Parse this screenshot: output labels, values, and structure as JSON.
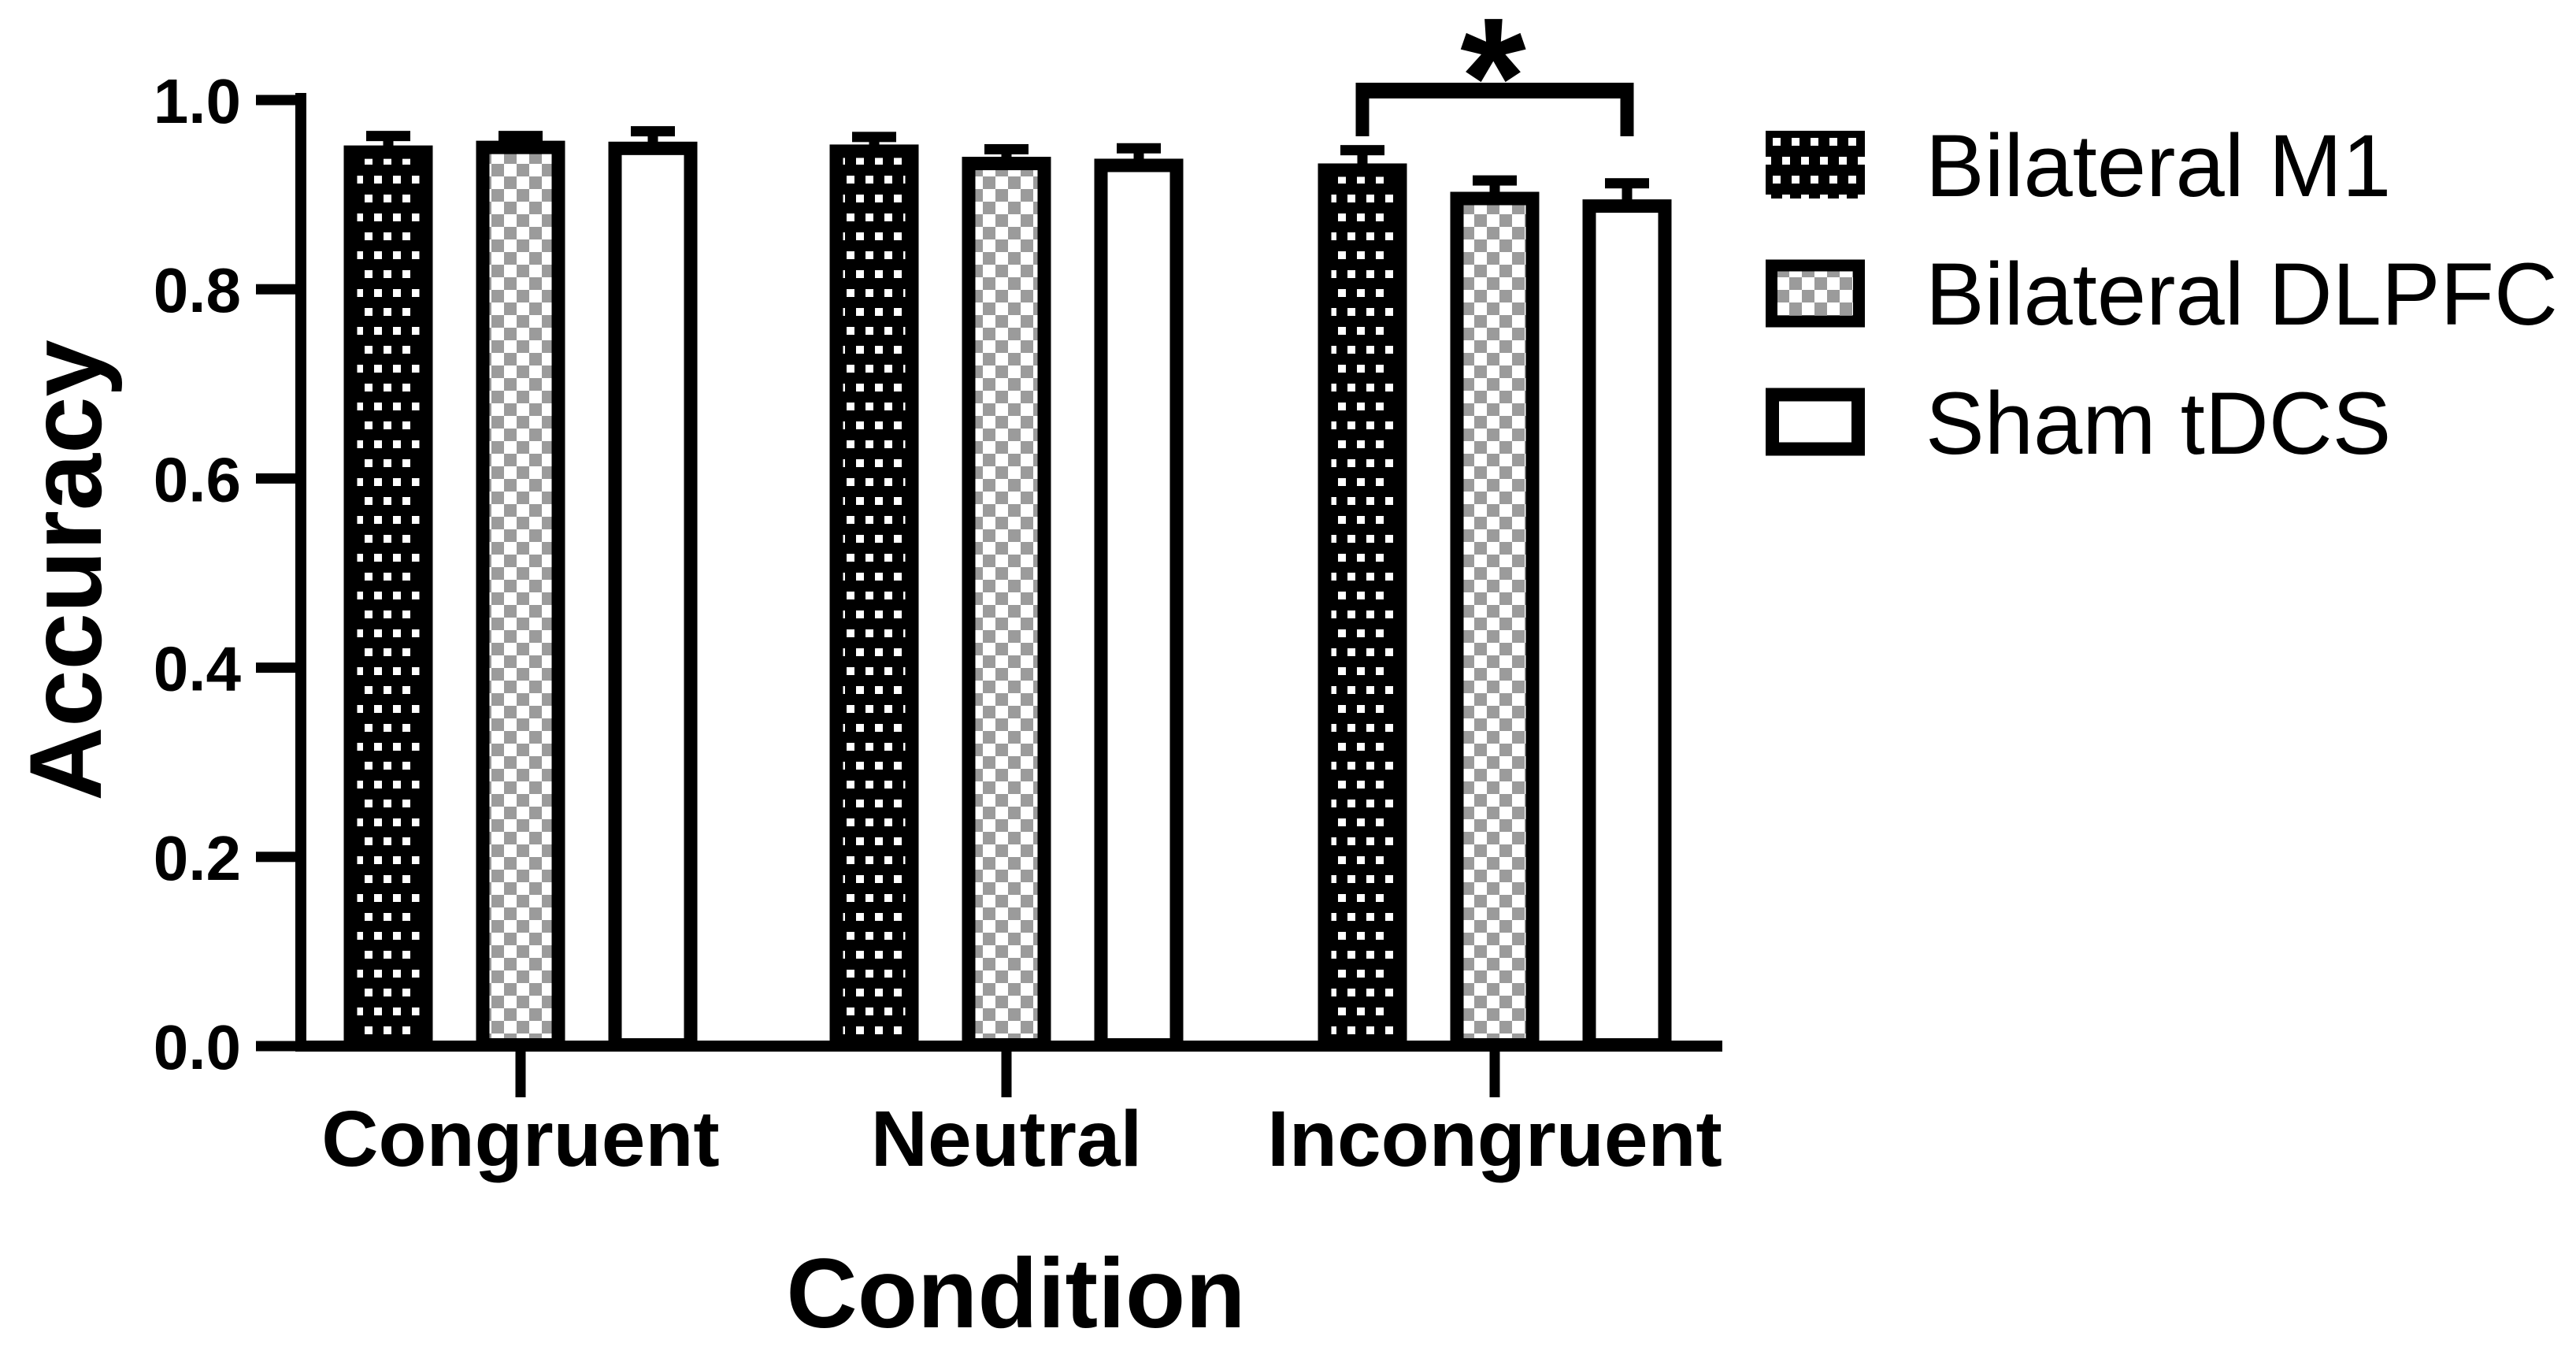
{
  "chart_data": {
    "type": "bar",
    "title": "",
    "xlabel": "Condition",
    "ylabel": "Accuracy",
    "categories": [
      "Congruent",
      "Neutral",
      "Incongruent"
    ],
    "series": [
      {
        "name": "Bilateral M1",
        "pattern": "white-dots-on-black",
        "values": [
          0.952,
          0.953,
          0.933
        ],
        "errors": [
          0.01,
          0.008,
          0.014
        ]
      },
      {
        "name": "Bilateral DLPFC",
        "pattern": "gray-checkerboard",
        "values": [
          0.957,
          0.94,
          0.903
        ],
        "errors": [
          0.005,
          0.008,
          0.012
        ]
      },
      {
        "name": "Sham tDCS",
        "pattern": "white",
        "values": [
          0.956,
          0.938,
          0.895
        ],
        "errors": [
          0.011,
          0.011,
          0.017
        ]
      }
    ],
    "ylim": [
      0.0,
      1.0
    ],
    "yticks": [
      0.0,
      0.2,
      0.4,
      0.6,
      0.8,
      1.0
    ],
    "yticklabels": [
      "0.0",
      "0.2",
      "0.4",
      "0.6",
      "0.8",
      "1.0"
    ],
    "grid": false,
    "legend_position": "right-top",
    "error_bars": "upper-only",
    "significance": {
      "category": "Incongruent",
      "between": [
        "Bilateral M1",
        "Sham tDCS"
      ],
      "label": "*"
    },
    "colors": {
      "foreground": "#000000",
      "background": "#ffffff",
      "checker_gray": "#9b9b9b"
    }
  }
}
